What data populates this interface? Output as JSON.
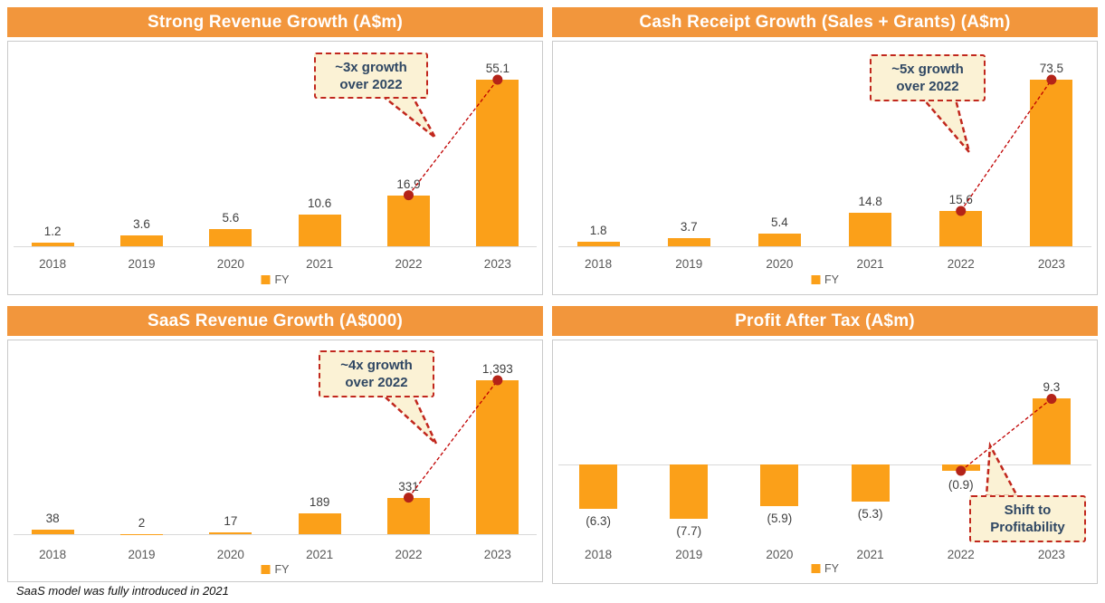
{
  "footnote": "SaaS model was fully introduced in 2021",
  "colors": {
    "header_bg": "#F2963C",
    "bar": "#FBA019",
    "callout_bg": "#FBF2D5",
    "callout_border": "#C1271D",
    "connector": "#C00000",
    "dot": "#B42318",
    "callout_text": "#2F4763",
    "axis_line": "#d9d9d9",
    "value_text": "#404040",
    "year_text": "#595959"
  },
  "chart_data": [
    {
      "type": "bar",
      "title": "Strong Revenue Growth (A$m)",
      "categories": [
        "2018",
        "2019",
        "2020",
        "2021",
        "2022",
        "2023"
      ],
      "values": [
        1.2,
        3.6,
        5.6,
        10.6,
        16.9,
        55.1
      ],
      "labels": [
        "1.2",
        "3.6",
        "5.6",
        "10.6",
        "16.9",
        "55.1"
      ],
      "legend": "FY",
      "ylim": [
        0,
        60
      ],
      "grid": false,
      "annotation": {
        "lines": [
          "~3x growth",
          "over 2022"
        ],
        "from": "2022",
        "to": "2023"
      }
    },
    {
      "type": "bar",
      "title": "Cash Receipt Growth (Sales + Grants) (A$m)",
      "categories": [
        "2018",
        "2019",
        "2020",
        "2021",
        "2022",
        "2023"
      ],
      "values": [
        1.8,
        3.7,
        5.4,
        14.8,
        15.6,
        73.5
      ],
      "labels": [
        "1.8",
        "3.7",
        "5.4",
        "14.8",
        "15.6",
        "73.5"
      ],
      "legend": "FY",
      "ylim": [
        0,
        80
      ],
      "grid": false,
      "annotation": {
        "lines": [
          "~5x growth",
          "over 2022"
        ],
        "from": "2022",
        "to": "2023"
      }
    },
    {
      "type": "bar",
      "title": "SaaS Revenue Growth (A$000)",
      "categories": [
        "2018",
        "2019",
        "2020",
        "2021",
        "2022",
        "2023"
      ],
      "values": [
        38,
        2,
        17,
        189,
        331,
        1393
      ],
      "labels": [
        "38",
        "2",
        "17",
        "189",
        "331",
        "1,393"
      ],
      "legend": "FY",
      "ylim": [
        0,
        1500
      ],
      "grid": false,
      "annotation": {
        "lines": [
          "~4x growth",
          "over 2022"
        ],
        "from": "2022",
        "to": "2023"
      }
    },
    {
      "type": "bar",
      "title": "Profit After Tax (A$m)",
      "categories": [
        "2018",
        "2019",
        "2020",
        "2021",
        "2022",
        "2023"
      ],
      "values": [
        -6.3,
        -7.7,
        -5.9,
        -5.3,
        -0.9,
        9.3
      ],
      "labels": [
        "(6.3)",
        "(7.7)",
        "(5.9)",
        "(5.3)",
        "(0.9)",
        "9.3"
      ],
      "legend": "FY",
      "ylim": [
        -10,
        12
      ],
      "grid": false,
      "annotation": {
        "lines": [
          "Shift to",
          "Profitability"
        ],
        "from": "2022",
        "to": "2023"
      }
    }
  ]
}
